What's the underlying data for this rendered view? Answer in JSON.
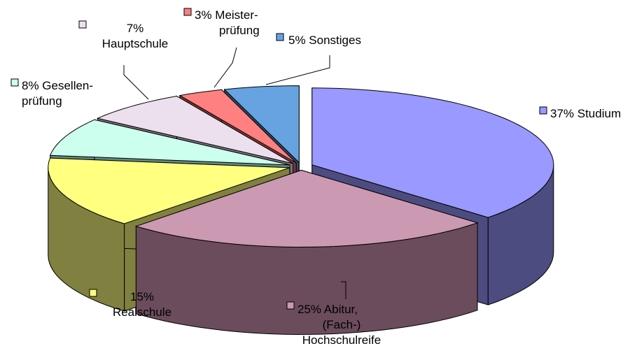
{
  "chart_data": {
    "type": "pie",
    "style": "3d-exploded",
    "title": "",
    "legend": "labels beside slices",
    "slices": [
      {
        "label_lines": [
          "37% Studium"
        ],
        "value": 37,
        "color": "#9999ff",
        "side_color": "#4c4c80"
      },
      {
        "label_lines": [
          "25% Abitur,",
          "(Fach-)",
          "Hochschulreife"
        ],
        "value": 25,
        "color": "#cc99b2",
        "side_color": "#6b4c5c"
      },
      {
        "label_lines": [
          "15%",
          "Realschule"
        ],
        "value": 15,
        "color": "#ffff80",
        "side_color": "#808040"
      },
      {
        "label_lines": [
          "8% Gesellen-",
          "prüfung"
        ],
        "value": 8,
        "color": "#ccffee",
        "side_color": "#608a80"
      },
      {
        "label_lines": [
          "7%",
          "Hauptschule"
        ],
        "value": 7,
        "color": "#ede0ee",
        "side_color": "#77707a"
      },
      {
        "label_lines": [
          "3% Meister-",
          "prüfung"
        ],
        "value": 3,
        "color": "#ff8080",
        "side_color": "#803a3a"
      },
      {
        "label_lines": [
          "5% Sonstiges"
        ],
        "value": 5,
        "color": "#66a3e0",
        "side_color": "#2e4d6b"
      }
    ]
  }
}
